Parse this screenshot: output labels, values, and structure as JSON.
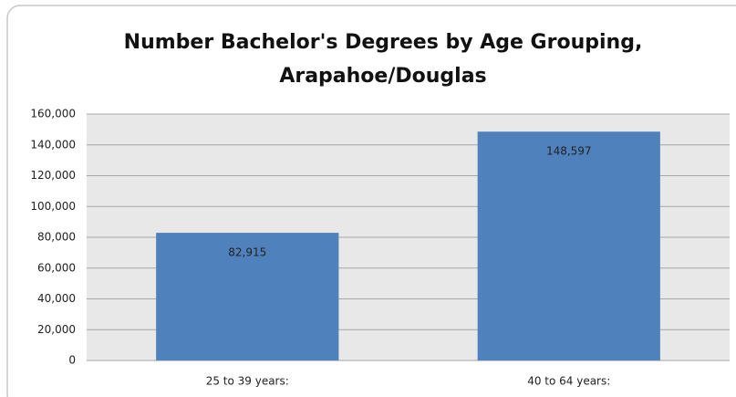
{
  "chart_data": {
    "type": "bar",
    "title": [
      "Number Bachelor's Degrees by Age Grouping,",
      "Arapahoe/Douglas"
    ],
    "categories": [
      "25 to 39 years:",
      "40 to 64 years:"
    ],
    "values": [
      82915,
      148597
    ],
    "value_labels": [
      "82,915",
      "148,597"
    ],
    "color": "#4f81bd",
    "ylim": [
      0,
      160000
    ],
    "yticks": [
      0,
      {
        "value": 20000,
        "label": "20,000"
      },
      {
        "value": 40000,
        "label": "40,000"
      },
      {
        "value": 60000,
        "label": "60,000"
      },
      {
        "value": 80000,
        "label": "80,000"
      },
      {
        "value": 100000,
        "label": "100,000"
      },
      {
        "value": 120000,
        "label": "120,000"
      },
      {
        "value": 140000,
        "label": "140,000"
      },
      {
        "value": 160000,
        "label": "160,000"
      }
    ],
    "grid": true
  }
}
